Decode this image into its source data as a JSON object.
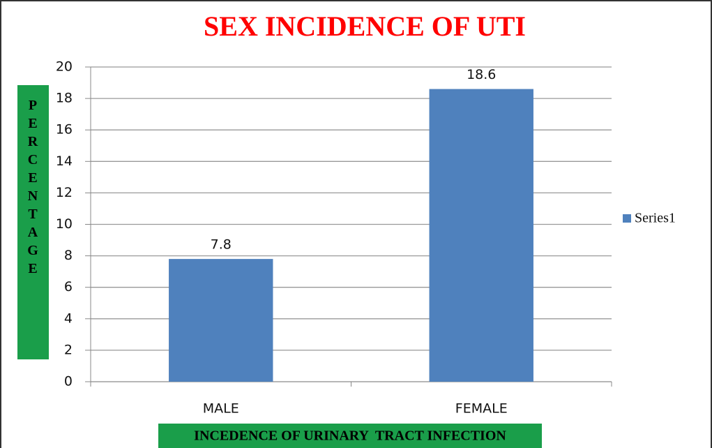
{
  "chart_data": {
    "type": "bar",
    "title": "SEX INCIDENCE OF UTI",
    "x_label": "INCEDENCE OF URINARY  TRACT INFECTION",
    "y_label": "PERCENTAGE",
    "categories": [
      "MALE",
      "FEMALE"
    ],
    "series": [
      {
        "name": "Series1",
        "color": "#4f81bd",
        "values": [
          7.8,
          18.6
        ]
      }
    ],
    "ylim": [
      0,
      20
    ],
    "yticks": [
      0,
      2,
      4,
      6,
      8,
      10,
      12,
      14,
      16,
      18,
      20
    ],
    "grid": true,
    "legend": "right",
    "data_labels": true
  }
}
